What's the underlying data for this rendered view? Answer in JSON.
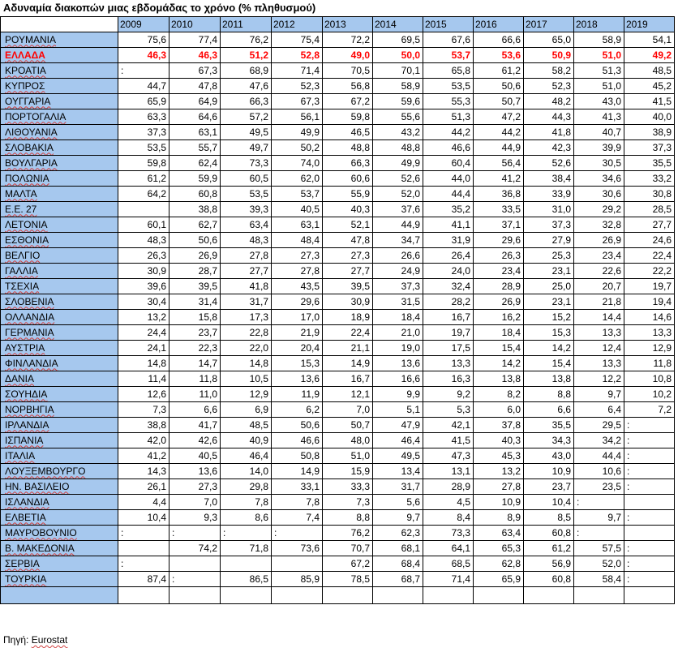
{
  "title": "Αδυναμία διακοπών μιας εβδομάδας το χρόνο (% πληθυσμού)",
  "accent_color": "#a6c8ee",
  "highlight_color": "#ff0000",
  "years": [
    "2009",
    "2010",
    "2011",
    "2012",
    "2013",
    "2014",
    "2015",
    "2016",
    "2017",
    "2018",
    "2019"
  ],
  "highlight_country": "ΕΛΛΑΔΑ",
  "rows": [
    {
      "country": "ΡΟΥΜΑΝΙΑ",
      "values": [
        "75,6",
        "77,4",
        "76,2",
        "75,4",
        "72,2",
        "69,5",
        "67,6",
        "66,6",
        "65,0",
        "58,9",
        "54,1"
      ]
    },
    {
      "country": "ΕΛΛΑΔΑ",
      "values": [
        "46,3",
        "46,3",
        "51,2",
        "52,8",
        "49,0",
        "50,0",
        "53,7",
        "53,6",
        "50,9",
        "51,0",
        "49,2"
      ]
    },
    {
      "country": "ΚΡΟΑΤΙΑ",
      "values": [
        ":",
        "67,3",
        "68,9",
        "71,4",
        "70,5",
        "70,1",
        "65,8",
        "61,2",
        "58,2",
        "51,3",
        "48,5"
      ]
    },
    {
      "country": "ΚΥΠΡΟΣ",
      "values": [
        "44,7",
        "47,8",
        "47,6",
        "52,3",
        "56,8",
        "58,9",
        "53,5",
        "50,6",
        "52,3",
        "51,0",
        "45,2"
      ]
    },
    {
      "country": "ΟΥΓΓΑΡΙΑ",
      "values": [
        "65,9",
        "64,9",
        "66,3",
        "67,3",
        "67,2",
        "59,6",
        "55,3",
        "50,7",
        "48,2",
        "43,0",
        "41,5"
      ]
    },
    {
      "country": "ΠΟΡΤΟΓΑΛΙΑ",
      "values": [
        "63,3",
        "64,6",
        "57,2",
        "56,1",
        "59,8",
        "55,6",
        "51,3",
        "47,2",
        "44,3",
        "41,3",
        "40,0"
      ]
    },
    {
      "country": "ΛΙΘΟΥΑΝΙΑ",
      "values": [
        "37,3",
        "63,1",
        "49,5",
        "49,9",
        "46,5",
        "43,2",
        "44,2",
        "44,2",
        "41,8",
        "40,7",
        "38,9"
      ]
    },
    {
      "country": "ΣΛΟΒΑΚΙΑ",
      "values": [
        "53,5",
        "55,7",
        "49,7",
        "50,2",
        "48,8",
        "48,8",
        "46,6",
        "44,9",
        "42,3",
        "39,9",
        "37,3"
      ]
    },
    {
      "country": "ΒΟΥΛΓΑΡΙΑ",
      "values": [
        "59,8",
        "62,4",
        "73,3",
        "74,0",
        "66,3",
        "49,9",
        "60,4",
        "56,4",
        "52,6",
        "30,5",
        "35,5"
      ]
    },
    {
      "country": "ΠΟΛΩΝΙΑ",
      "values": [
        "61,2",
        "59,9",
        "60,5",
        "62,0",
        "60,6",
        "52,6",
        "44,0",
        "41,2",
        "38,4",
        "34,6",
        "33,2"
      ]
    },
    {
      "country": "ΜΑΛΤΑ",
      "values": [
        "64,2",
        "60,8",
        "53,5",
        "53,7",
        "55,9",
        "52,0",
        "44,4",
        "36,8",
        "33,9",
        "30,6",
        "30,8"
      ]
    },
    {
      "country": "Ε.Ε. 27",
      "values": [
        "",
        "38,8",
        "39,3",
        "40,5",
        "40,3",
        "37,6",
        "35,2",
        "33,5",
        "31,0",
        "29,2",
        "28,5"
      ]
    },
    {
      "country": "ΛΕΤΟΝΙΑ",
      "values": [
        "60,1",
        "62,7",
        "63,4",
        "63,1",
        "52,1",
        "44,9",
        "41,1",
        "37,1",
        "37,3",
        "32,8",
        "27,7"
      ]
    },
    {
      "country": "ΕΣΘΟΝΙΑ",
      "values": [
        "48,3",
        "50,6",
        "48,3",
        "48,4",
        "47,8",
        "34,7",
        "31,9",
        "29,6",
        "27,9",
        "26,9",
        "24,6"
      ]
    },
    {
      "country": "ΒΕΛΓΙΟ",
      "values": [
        "26,3",
        "26,9",
        "27,8",
        "27,3",
        "27,3",
        "26,6",
        "26,4",
        "26,3",
        "25,3",
        "23,4",
        "22,4"
      ]
    },
    {
      "country": "ΓΑΛΛΙΑ",
      "values": [
        "30,9",
        "28,7",
        "27,7",
        "27,8",
        "27,7",
        "24,9",
        "24,0",
        "23,4",
        "23,1",
        "22,6",
        "22,2"
      ]
    },
    {
      "country": "ΤΣΕΧΙΑ",
      "values": [
        "39,6",
        "39,5",
        "41,8",
        "43,5",
        "39,5",
        "37,3",
        "32,4",
        "28,9",
        "25,0",
        "20,7",
        "19,7"
      ]
    },
    {
      "country": "ΣΛΟΒΕΝΙΑ",
      "values": [
        "30,4",
        "31,4",
        "31,7",
        "29,6",
        "30,9",
        "31,5",
        "28,2",
        "26,9",
        "23,1",
        "21,8",
        "19,4"
      ]
    },
    {
      "country": "ΟΛΛΑΝΔΙΑ",
      "values": [
        "13,2",
        "15,8",
        "17,3",
        "17,0",
        "18,9",
        "18,4",
        "16,7",
        "16,2",
        "15,2",
        "14,4",
        "14,6"
      ]
    },
    {
      "country": "ΓΕΡΜΑΝΙΑ",
      "values": [
        "24,4",
        "23,7",
        "22,8",
        "21,9",
        "22,4",
        "21,0",
        "19,7",
        "18,4",
        "15,3",
        "13,3",
        "13,3"
      ]
    },
    {
      "country": "ΑΥΣΤΡΙΑ",
      "values": [
        "24,1",
        "22,3",
        "22,0",
        "20,4",
        "21,1",
        "19,0",
        "17,5",
        "15,4",
        "14,2",
        "12,4",
        "12,9"
      ]
    },
    {
      "country": "ΦΙΝΛΑΝΔΙΑ",
      "values": [
        "14,8",
        "14,7",
        "14,8",
        "15,3",
        "14,9",
        "13,6",
        "13,3",
        "14,2",
        "15,4",
        "13,3",
        "11,8"
      ]
    },
    {
      "country": "ΔΑΝΙΑ",
      "values": [
        "11,4",
        "11,8",
        "10,5",
        "13,6",
        "16,7",
        "16,6",
        "16,3",
        "13,8",
        "13,8",
        "12,2",
        "10,8"
      ]
    },
    {
      "country": "ΣΟΥΗΔΙΑ",
      "values": [
        "12,6",
        "11,0",
        "12,9",
        "11,9",
        "12,1",
        "9,9",
        "9,2",
        "8,2",
        "8,8",
        "9,7",
        "10,2"
      ]
    },
    {
      "country": "ΝΟΡΒΗΓΙΑ",
      "values": [
        "7,3",
        "6,6",
        "6,9",
        "6,2",
        "7,0",
        "5,1",
        "5,3",
        "6,0",
        "6,6",
        "6,4",
        "7,2"
      ]
    },
    {
      "country": "ΙΡΛΑΝΔΙΑ",
      "values": [
        "38,8",
        "41,7",
        "48,5",
        "50,6",
        "50,7",
        "47,9",
        "42,1",
        "37,8",
        "35,5",
        "29,5",
        ":"
      ]
    },
    {
      "country": "ΙΣΠΑΝΙΑ",
      "values": [
        "42,0",
        "42,6",
        "40,9",
        "46,6",
        "48,0",
        "46,4",
        "41,5",
        "40,3",
        "34,3",
        "34,2",
        ":"
      ]
    },
    {
      "country": "ΙΤΑΛΙΑ",
      "values": [
        "41,2",
        "40,5",
        "46,4",
        "50,8",
        "51,0",
        "49,5",
        "47,3",
        "45,3",
        "43,0",
        "44,4",
        ":"
      ]
    },
    {
      "country": "ΛΟΥΞΕΜΒΟΥΡΓΟ",
      "values": [
        "14,3",
        "13,6",
        "14,0",
        "14,9",
        "15,9",
        "13,4",
        "13,1",
        "13,2",
        "10,9",
        "10,6",
        ":"
      ]
    },
    {
      "country": "ΗΝ. ΒΑΣΙΛΕΙΟ",
      "values": [
        "26,1",
        "27,3",
        "29,8",
        "33,1",
        "33,3",
        "31,7",
        "28,9",
        "27,8",
        "23,7",
        "23,5",
        ":"
      ]
    },
    {
      "country": "ΙΣΛΑΝΔΙΑ",
      "values": [
        "4,4",
        "7,0",
        "7,8",
        "7,8",
        "7,3",
        "5,6",
        "4,5",
        "10,9",
        "10,4",
        ":",
        ""
      ]
    },
    {
      "country": "ΕΛΒΕΤΙΑ",
      "values": [
        "10,4",
        "9,3",
        "8,6",
        "7,4",
        "8,8",
        "9,7",
        "8,4",
        "8,9",
        "8,5",
        "9,7",
        ":"
      ]
    },
    {
      "country": "ΜΑΥΡΟΒΟΥΝΙΟ",
      "values": [
        ":",
        ":",
        ":",
        ":",
        "76,2",
        "62,3",
        "73,3",
        "63,4",
        "60,8",
        ":",
        ""
      ]
    },
    {
      "country": "Β. ΜΑΚΕΔΟΝΙΑ",
      "values": [
        "",
        "74,2",
        "71,8",
        "73,6",
        "70,7",
        "68,1",
        "64,1",
        "65,3",
        "61,2",
        "57,5",
        ":"
      ]
    },
    {
      "country": "ΣΕΡΒΙΑ",
      "values": [
        ":",
        "",
        "",
        "",
        "67,2",
        "68,4",
        "68,5",
        "62,8",
        "56,9",
        "52,0",
        ":"
      ]
    },
    {
      "country": "ΤΟΥΡΚΙΑ",
      "values": [
        "87,4",
        ":",
        "86,5",
        "85,9",
        "78,5",
        "68,7",
        "71,4",
        "65,9",
        "60,8",
        "58,4",
        ":"
      ]
    }
  ],
  "source": {
    "label": "Πηγή:",
    "name": "Eurostat"
  }
}
